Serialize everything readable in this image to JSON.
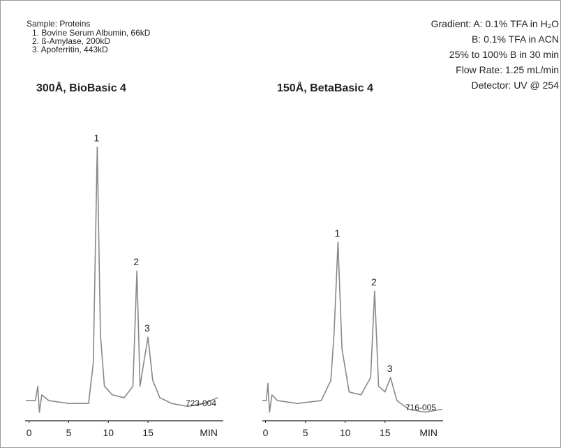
{
  "sample": {
    "title": "Sample: Proteins",
    "items": [
      "1.   Bovine Serum Albumin, 66kD",
      "2.   ß-Amylase, 200kD",
      "3.   Apoferritin, 443kD"
    ]
  },
  "conditions": [
    "Gradient: A: 0.1% TFA in H₂O",
    "B: 0.1% TFA in ACN",
    "25% to 100% B in 30 min",
    "Flow Rate: 1.25 mL/min",
    "Detector: UV @ 254"
  ],
  "chart_data": [
    {
      "type": "line",
      "title": "300Å, BioBasic 4",
      "x_label": "MIN",
      "code": "723-004",
      "color": "#888888",
      "x": [
        -0.4,
        0.8,
        1.1,
        1.3,
        1.6,
        2.5,
        5,
        7.5,
        8.1,
        8.6,
        9.0,
        9.5,
        10.5,
        12,
        13.1,
        13.6,
        14.0,
        14.4,
        15.0,
        15.6,
        16.5,
        18,
        20,
        22,
        23.8
      ],
      "values": [
        7,
        7,
        12,
        3,
        9,
        7,
        6,
        6,
        20,
        95,
        30,
        12,
        9,
        8,
        12,
        52,
        12,
        19,
        29,
        14,
        8,
        6,
        5,
        6,
        8
      ],
      "peaks": [
        {
          "label": "1",
          "x": 8.6,
          "y": 95
        },
        {
          "label": "2",
          "x": 13.6,
          "y": 52
        },
        {
          "label": "3",
          "x": 15.0,
          "y": 29
        }
      ],
      "xlim": [
        -0.5,
        24.5
      ],
      "xticks": [
        0,
        5,
        10,
        15
      ],
      "ylim": [
        0,
        100
      ]
    },
    {
      "type": "line",
      "title": "150Å, BetaBasic 4",
      "x_label": "MIN",
      "code": "716-005",
      "color": "#888888",
      "x": [
        -0.4,
        0.1,
        0.3,
        0.5,
        0.8,
        1.5,
        4,
        7,
        8.2,
        8.6,
        9.1,
        9.6,
        10.5,
        12,
        13.2,
        13.7,
        14.2,
        15.0,
        15.7,
        16.5,
        18,
        20,
        22.2
      ],
      "values": [
        7,
        7,
        13,
        3,
        9,
        7,
        6,
        7,
        14,
        30,
        62,
        25,
        10,
        9,
        15,
        45,
        12,
        10,
        15,
        7,
        4,
        3,
        4
      ],
      "peaks": [
        {
          "label": "1",
          "x": 9.1,
          "y": 62
        },
        {
          "label": "2",
          "x": 13.7,
          "y": 45
        },
        {
          "label": "3",
          "x": 15.7,
          "y": 15
        }
      ],
      "xlim": [
        -0.4,
        22.3
      ],
      "xticks": [
        0,
        5,
        10,
        15
      ],
      "ylim": [
        0,
        100
      ]
    }
  ]
}
